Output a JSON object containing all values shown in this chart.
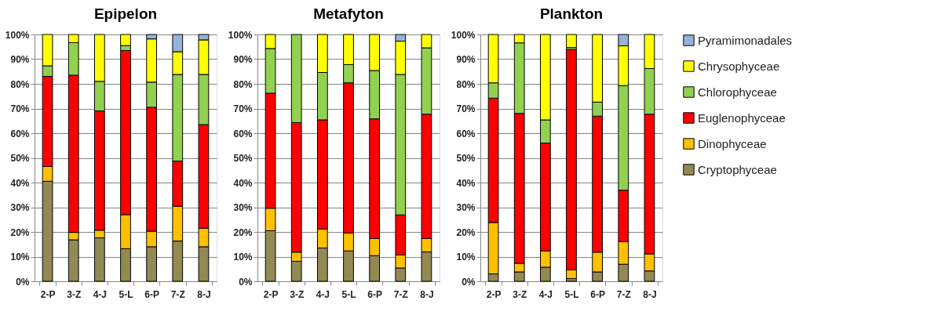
{
  "chart_data": [
    {
      "type": "bar",
      "title": "Epipelon",
      "stacked": true,
      "categories": [
        "2-P",
        "3-Z",
        "4-J",
        "5-L",
        "6-P",
        "7-Z",
        "8-J"
      ],
      "ylim": [
        0,
        100
      ],
      "yticks": [
        {
          "value": 0,
          "label": "0%"
        },
        {
          "value": 10,
          "label": "10%"
        },
        {
          "value": 20,
          "label": "20%"
        },
        {
          "value": 30,
          "label": "30%"
        },
        {
          "value": 40,
          "label": "40%"
        },
        {
          "value": 50,
          "label": "50%"
        },
        {
          "value": 60,
          "label": "60%"
        },
        {
          "value": 70,
          "label": "70%"
        },
        {
          "value": 80,
          "label": "80%"
        },
        {
          "value": 90,
          "label": "90%"
        },
        {
          "value": 100,
          "label": "100%"
        }
      ],
      "grid": "y",
      "legend": "right",
      "series": [
        {
          "name": "Cryptophyceae",
          "color": "#938953",
          "values": [
            40.5,
            16.8,
            17.6,
            13.2,
            14,
            16.3,
            14
          ]
        },
        {
          "name": "Dinophyceae",
          "color": "#ffc000",
          "values": [
            6,
            3,
            3.1,
            13.8,
            6.3,
            14.1,
            7.5
          ]
        },
        {
          "name": "Euglenophyceae",
          "color": "#ff0000",
          "values": [
            36.5,
            63.7,
            48.3,
            66.5,
            50.2,
            18.3,
            42
          ]
        },
        {
          "name": "Chlorophyceae",
          "color": "#92d050",
          "values": [
            4.3,
            13.2,
            12,
            2,
            10.2,
            35.1,
            20.3
          ]
        },
        {
          "name": "Chrysophyceae",
          "color": "#ffff00",
          "values": [
            12.7,
            3.3,
            19,
            4.5,
            17.5,
            9.2,
            14
          ]
        },
        {
          "name": "Pyramimonadales",
          "color": "#95b3d7",
          "values": [
            null,
            null,
            null,
            null,
            1.8,
            7,
            2.2
          ]
        }
      ]
    },
    {
      "type": "bar",
      "title": "Metafyton",
      "stacked": true,
      "categories": [
        "2-P",
        "3-Z",
        "4-J",
        "5-L",
        "6-P",
        "7-Z",
        "8-J"
      ],
      "ylim": [
        0,
        100
      ],
      "yticks": [
        {
          "value": 0,
          "label": "0%"
        },
        {
          "value": 10,
          "label": "10%"
        },
        {
          "value": 20,
          "label": "20%"
        },
        {
          "value": 30,
          "label": "30%"
        },
        {
          "value": 40,
          "label": "40%"
        },
        {
          "value": 50,
          "label": "50%"
        },
        {
          "value": 60,
          "label": "60%"
        },
        {
          "value": 70,
          "label": "70%"
        },
        {
          "value": 80,
          "label": "80%"
        },
        {
          "value": 90,
          "label": "90%"
        },
        {
          "value": 100,
          "label": "100%"
        }
      ],
      "grid": "y",
      "legend": "right",
      "series": [
        {
          "name": "Cryptophyceae",
          "color": "#938953",
          "values": [
            20.5,
            8.1,
            13.5,
            12.3,
            10.4,
            5.4,
            11.9
          ]
        },
        {
          "name": "Dinophyceae",
          "color": "#ffc000",
          "values": [
            9.1,
            3.7,
            7.7,
            7.3,
            6.9,
            5.3,
            5.4
          ]
        },
        {
          "name": "Euglenophyceae",
          "color": "#ff0000",
          "values": [
            46.6,
            52.5,
            44.2,
            60.8,
            48.5,
            16.2,
            50.4
          ]
        },
        {
          "name": "Chlorophyceae",
          "color": "#92d050",
          "values": [
            18.1,
            35.7,
            19.2,
            7.4,
            19.6,
            56.9,
            26.9
          ]
        },
        {
          "name": "Chrysophyceae",
          "color": "#ffff00",
          "values": [
            5.7,
            null,
            15.4,
            12.2,
            14.6,
            13.5,
            5.4
          ]
        },
        {
          "name": "Pyramimonadales",
          "color": "#95b3d7",
          "values": [
            null,
            null,
            null,
            null,
            null,
            2.7,
            null
          ]
        }
      ]
    },
    {
      "type": "bar",
      "title": "Plankton",
      "stacked": true,
      "categories": [
        "2-P",
        "3-Z",
        "4-J",
        "5-L",
        "6-P",
        "7-Z",
        "8-J"
      ],
      "ylim": [
        0,
        100
      ],
      "yticks": [
        {
          "value": 0,
          "label": "0%"
        },
        {
          "value": 10,
          "label": "10%"
        },
        {
          "value": 20,
          "label": "20%"
        },
        {
          "value": 30,
          "label": "30%"
        },
        {
          "value": 40,
          "label": "40%"
        },
        {
          "value": 50,
          "label": "50%"
        },
        {
          "value": 60,
          "label": "60%"
        },
        {
          "value": 70,
          "label": "70%"
        },
        {
          "value": 80,
          "label": "80%"
        },
        {
          "value": 90,
          "label": "90%"
        },
        {
          "value": 100,
          "label": "100%"
        }
      ],
      "grid": "y",
      "legend": "right",
      "series": [
        {
          "name": "Cryptophyceae",
          "color": "#938953",
          "values": [
            3,
            3.8,
            5.7,
            1.1,
            3.8,
            6.9,
            4.2
          ]
        },
        {
          "name": "Dinophyceae",
          "color": "#ffc000",
          "values": [
            20.8,
            3.5,
            6.6,
            3.5,
            8,
            9.2,
            6.9
          ]
        },
        {
          "name": "Euglenophyceae",
          "color": "#ff0000",
          "values": [
            50.4,
            60.7,
            43.7,
            89.3,
            55.1,
            20.8,
            56.6
          ]
        },
        {
          "name": "Chlorophyceae",
          "color": "#92d050",
          "values": [
            6.2,
            28.6,
            9.4,
            0.8,
            5.7,
            42.4,
            18.5
          ]
        },
        {
          "name": "Chrysophyceae",
          "color": "#ffff00",
          "values": [
            19.6,
            3.4,
            34.6,
            5.3,
            27.4,
            16.1,
            13.8
          ]
        },
        {
          "name": "Pyramimonadales",
          "color": "#95b3d7",
          "values": [
            null,
            null,
            null,
            null,
            null,
            4.6,
            null
          ]
        }
      ]
    }
  ]
}
